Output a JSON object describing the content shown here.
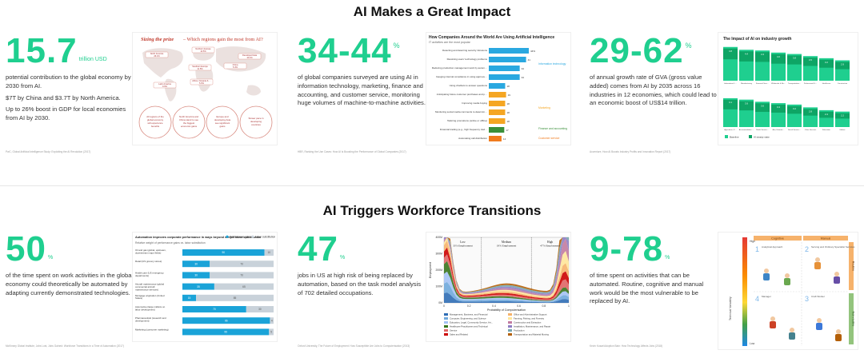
{
  "sections": [
    {
      "title": "AI Makes a Great Impact"
    },
    {
      "title": "AI Triggers Workforce Transitions"
    }
  ],
  "stats": [
    {
      "value": "15.7",
      "unit": "trillion USD",
      "lines": [
        "potential contribution to the global economy by 2030 from AI.",
        "$7T by China and $3.7T by North America.",
        "Up to 26% boost in GDP for local economies from AI by 2030."
      ],
      "source": "PwC, Global Artificial Intelligence Study: Exploiting the AI Revolution (2017)"
    },
    {
      "value": "34-44",
      "unit": "%",
      "lines": [
        "of global companies surveyed are using AI in information technology, marketing, finance and accounting, and customer service, monitoring huge volumes of machine-to-machine activities."
      ],
      "source": "HBR, Ranking the Use Cases: How AI Is Boosting the Performance of Global Companies (2017)"
    },
    {
      "value": "29-62",
      "unit": "%",
      "lines": [
        "of annual growth rate of GVA (gross value added) comes from AI by 2035 across 16 industries in 12 economies, which could lead to an economic boost of US$14 trillion."
      ],
      "source": "Accenture, How AI Boosts Industry Profits and Innovation Report (2017)"
    },
    {
      "value": "50",
      "unit": "%",
      "lines": [
        "of the time spent on work activities in the global economy could theoretically be automated by adapting currently demonstrated technologies."
      ],
      "source": "McKinsey Global Institute, Jobs Lost, Jobs Gained: Workforce Transitions in a Time of Automation (2017)"
    },
    {
      "value": "47",
      "unit": "%",
      "lines": [
        "jobs in US at high risk of being replaced by automation, based on the task model analysis of 702 detailed occupations."
      ],
      "source": "Oxford University, The Future of Employment: How Susceptible Are Jobs to Computerisation (2013)"
    },
    {
      "value": "9-78",
      "unit": "%",
      "lines": [
        "of time spent on activities that can be automated. Routine, cognitive and manual work would be the most vulnerable to be replaced by AI."
      ],
      "source": "Kevin Kosar/Adoption Bain: How Technology Affects Jobs (2018)"
    }
  ],
  "prize": {
    "title_red": "Sizing the prize",
    "title_rest": " – Which regions gain the most from AI?",
    "regions": [
      "North America",
      "Northern Europe",
      "Southern Europe",
      "Developed Asia",
      "Latin America",
      "Africa, Oceania & other Asian markets",
      "China"
    ],
    "notes": [
      "All regions of the global economy will experience benefits",
      "North America and China stand to see the biggest economic gains",
      "Europe and developing Asia see significant gains",
      "Slower pace in developing countries"
    ],
    "badges": [
      "26.1%",
      "14.5%",
      "11.5%",
      "10.4%",
      "9.9%",
      "5.6%",
      "5.4%"
    ]
  },
  "hbr_chart": {
    "type": "bar",
    "title": "How Companies Around the World Are Using Artificial Intelligence",
    "subtitle": "IT activities are the most popular",
    "categories": [
      "Detecting and deterring security intrusions",
      "Resolving users' technology problems",
      "Reducing production management work by automating it",
      "Gauging internal compliance in using approved technology vendors",
      "Using chatbots to answer questions",
      "Anticipating future customer purchases and presenting offers accordingly",
      "Improving media buying",
      "Monitoring social media comments to determine overall brand affinity and issues",
      "Tailoring promotions (online or offline)",
      "Financial trading (e.g., high frequency trading enabled by AI)",
      "Automating call distribution"
    ],
    "values": [
      44,
      41,
      34,
      34,
      18,
      19,
      18,
      18,
      18,
      17,
      14
    ],
    "group_of_bar": [
      0,
      0,
      0,
      0,
      0,
      1,
      1,
      1,
      1,
      2,
      3
    ],
    "groups": [
      "Information technology",
      "Marketing",
      "Finance and accounting",
      "Customer service"
    ],
    "group_colors": [
      "#2aa8e0",
      "#f5a623",
      "#3a8f3a",
      "#f07b1e"
    ],
    "value_labels": [
      "44%",
      "41",
      "34",
      "34",
      "18",
      "19",
      "18",
      "18",
      "18",
      "17",
      "14"
    ]
  },
  "gva_chart": {
    "type": "bar",
    "title": "The Impact of AI on industry growth",
    "series_colors": [
      "#1fcf8f",
      "#0ea565"
    ],
    "legend": [
      "Baseline",
      "AI steady state"
    ],
    "top_categories": [
      "Information & Communication",
      "Manufacturing",
      "Financial Services",
      "Wholesale & Retail",
      "Transportation & Storage",
      "Professional Services",
      "Healthcare",
      "Construction"
    ],
    "top_values": [
      [
        4.8,
        3.4
      ],
      [
        4.4,
        3.2
      ],
      [
        4.3,
        3.1
      ],
      [
        4.0,
        3.0
      ],
      [
        3.8,
        2.8
      ],
      [
        3.5,
        2.6
      ],
      [
        3.2,
        2.5
      ],
      [
        2.9,
        2.3
      ]
    ],
    "bottom_categories": [
      "Agriculture, Forestry & Fishing",
      "Accommodation & Food Services",
      "Public Services",
      "Arts, Entertainment & Recreation",
      "Social Services",
      "Other Services",
      "Education",
      "Utilities"
    ],
    "bottom_values": [
      [
        4.1,
        3.0
      ],
      [
        3.9,
        2.9
      ],
      [
        3.6,
        2.7
      ],
      [
        3.4,
        2.5
      ],
      [
        3.2,
        2.4
      ],
      [
        2.8,
        2.1
      ],
      [
        2.4,
        1.9
      ],
      [
        2.2,
        1.7
      ]
    ]
  },
  "auto_chart": {
    "type": "bar",
    "title": "Automation improves corporate performance in ways beyond simple labor substitution",
    "subtitle": "Relative weight of performance gains vs. labor substitution",
    "legend": [
      "Performance gains",
      "Labor substitution"
    ],
    "colors": [
      "#1aa3d8",
      "#c9d2da"
    ],
    "categories": [
      "Oil and gas (global, upstream, downstream major fields)",
      "Retail (US grocery stores)",
      "Health care (US emergency departments)",
      "Aircraft maintenance (global commercial aircraft maintenance services)",
      "Mortgage origination (United States)",
      "Automotive (large midsize on labor development)",
      "Pharmaceutical (research and development)",
      "Marketing (consumer marketing)"
    ],
    "gains": [
      90,
      30,
      30,
      35,
      15,
      70,
      96,
      95
    ],
    "labor": [
      10,
      70,
      70,
      65,
      85,
      30,
      4,
      5
    ]
  },
  "oxford_chart": {
    "type": "area",
    "y_ticks": [
      "400M",
      "300M",
      "200M",
      "100M",
      "0M"
    ],
    "x_ticks": [
      "0",
      "0.2",
      "0.4",
      "0.6",
      "0.8",
      "1"
    ],
    "xlabel": "Probability of Computerisation",
    "ylabel": "Employment",
    "bands": [
      {
        "label": "Low",
        "share": "33% Employment"
      },
      {
        "label": "Medium",
        "share": "19% Employment"
      },
      {
        "label": "High",
        "share": "47% Employment"
      }
    ],
    "legend": [
      "Management, Business, and Financial",
      "Computer, Engineering, and Science",
      "Education, Legal, Community Service, Arts, and Media",
      "Healthcare Practitioners and Technical",
      "Service",
      "Sales and Related",
      "Office and Administrative Support",
      "Farming, Fishing, and Forestry",
      "Construction and Extraction",
      "Installation, Maintenance, and Repair",
      "Production",
      "Transportation and Material Moving"
    ],
    "colors": [
      "#2f6db5",
      "#6fa8dc",
      "#a4c2f4",
      "#38761d",
      "#e06666",
      "#cc0000",
      "#f6b26b",
      "#ffe599",
      "#c27ba0",
      "#8e7cc3",
      "#76a5af",
      "#b45f06"
    ]
  },
  "bain_chart": {
    "col_titles": [
      "Cognitive",
      "Manual"
    ],
    "row_titles": [
      "Routine",
      "Non-routine"
    ],
    "quadrants": [
      "Analytical Approach",
      "Serving and Ordinary Specialist Services",
      "Manager",
      "Craft Worker"
    ],
    "quad_numbers": [
      "1",
      "2",
      "3",
      "4"
    ],
    "vertical_label": "Technical Variability",
    "level_labels": [
      "High",
      "Low"
    ]
  }
}
